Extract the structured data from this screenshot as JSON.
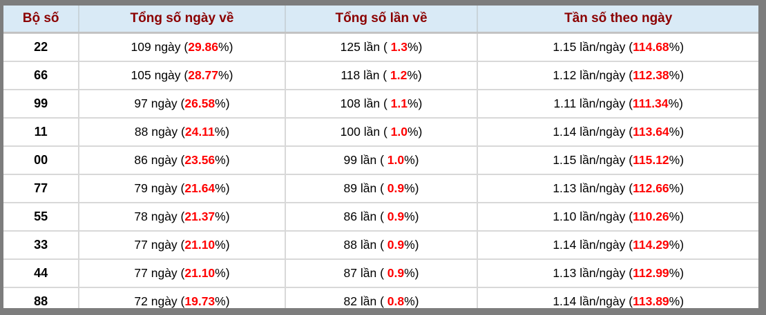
{
  "table": {
    "columns": [
      "Bộ số",
      "Tổng số ngày về",
      "Tổng số lần về",
      "Tần số theo ngày"
    ],
    "rows": [
      {
        "pair": "22",
        "days_prefix": "109 ngày (",
        "days_value": "29.86",
        "days_suffix": "%)",
        "times_prefix": "125 lần ( ",
        "times_value": "1.3",
        "times_suffix": "%)",
        "freq_prefix": "1.15 lần/ngày (",
        "freq_value": "114.68",
        "freq_suffix": "%)"
      },
      {
        "pair": "66",
        "days_prefix": "105 ngày (",
        "days_value": "28.77",
        "days_suffix": "%)",
        "times_prefix": "118 lần ( ",
        "times_value": "1.2",
        "times_suffix": "%)",
        "freq_prefix": "1.12 lần/ngày (",
        "freq_value": "112.38",
        "freq_suffix": "%)"
      },
      {
        "pair": "99",
        "days_prefix": "97 ngày (",
        "days_value": "26.58",
        "days_suffix": "%)",
        "times_prefix": "108 lần ( ",
        "times_value": "1.1",
        "times_suffix": "%)",
        "freq_prefix": "1.11 lần/ngày (",
        "freq_value": "111.34",
        "freq_suffix": "%)"
      },
      {
        "pair": "11",
        "days_prefix": "88 ngày (",
        "days_value": "24.11",
        "days_suffix": "%)",
        "times_prefix": "100 lần ( ",
        "times_value": "1.0",
        "times_suffix": "%)",
        "freq_prefix": "1.14 lần/ngày (",
        "freq_value": "113.64",
        "freq_suffix": "%)"
      },
      {
        "pair": "00",
        "days_prefix": "86 ngày (",
        "days_value": "23.56",
        "days_suffix": "%)",
        "times_prefix": "99 lần ( ",
        "times_value": "1.0",
        "times_suffix": "%)",
        "freq_prefix": "1.15 lần/ngày (",
        "freq_value": "115.12",
        "freq_suffix": "%)"
      },
      {
        "pair": "77",
        "days_prefix": "79 ngày (",
        "days_value": "21.64",
        "days_suffix": "%)",
        "times_prefix": "89 lần ( ",
        "times_value": "0.9",
        "times_suffix": "%)",
        "freq_prefix": "1.13 lần/ngày (",
        "freq_value": "112.66",
        "freq_suffix": "%)"
      },
      {
        "pair": "55",
        "days_prefix": "78 ngày (",
        "days_value": "21.37",
        "days_suffix": "%)",
        "times_prefix": "86 lần ( ",
        "times_value": "0.9",
        "times_suffix": "%)",
        "freq_prefix": "1.10 lần/ngày (",
        "freq_value": "110.26",
        "freq_suffix": "%)"
      },
      {
        "pair": "33",
        "days_prefix": "77 ngày (",
        "days_value": "21.10",
        "days_suffix": "%)",
        "times_prefix": "88 lần ( ",
        "times_value": "0.9",
        "times_suffix": "%)",
        "freq_prefix": "1.14 lần/ngày (",
        "freq_value": "114.29",
        "freq_suffix": "%)"
      },
      {
        "pair": "44",
        "days_prefix": "77 ngày (",
        "days_value": "21.10",
        "days_suffix": "%)",
        "times_prefix": "87 lần ( ",
        "times_value": "0.9",
        "times_suffix": "%)",
        "freq_prefix": "1.13 lần/ngày (",
        "freq_value": "112.99",
        "freq_suffix": "%)"
      },
      {
        "pair": "88",
        "days_prefix": "72 ngày (",
        "days_value": "19.73",
        "days_suffix": "%)",
        "times_prefix": "82 lần ( ",
        "times_value": "0.8",
        "times_suffix": "%)",
        "freq_prefix": "1.14 lần/ngày (",
        "freq_value": "113.89",
        "freq_suffix": "%)"
      }
    ]
  },
  "colors": {
    "header_bg": "#d9eaf6",
    "header_text": "#8b0000",
    "highlight_red": "#ff0000",
    "frame_gray": "#7d7d7d",
    "grid_line": "#d8d8d8"
  }
}
